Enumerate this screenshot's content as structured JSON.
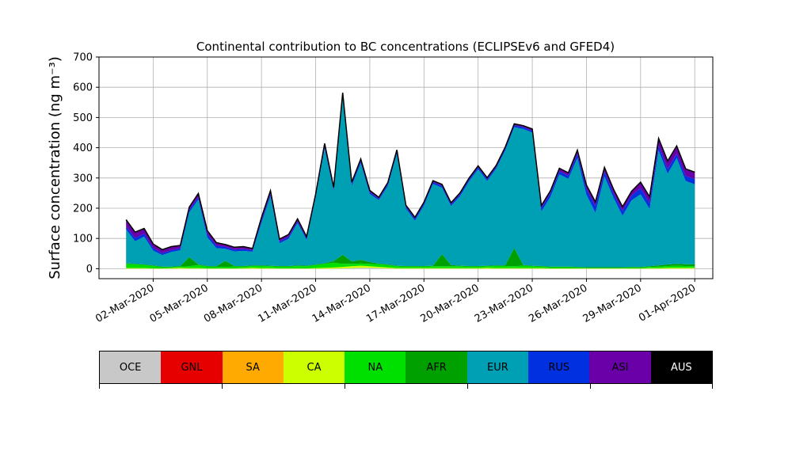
{
  "chart_data": {
    "type": "area",
    "title": "Continental contribution to BC concentrations (ECLIPSEv6 and GFED4)",
    "ylabel": "Surface concentration (ng m⁻³)",
    "xlabel": "",
    "ylim": [
      -33,
      700
    ],
    "yticks": [
      0,
      100,
      200,
      300,
      400,
      500,
      600,
      700
    ],
    "x_start": "2020-02-28T00:00",
    "x_end": "2020-04-02T00:00",
    "xticks": [
      {
        "date": "2020-03-02",
        "label": "02-Mar-2020"
      },
      {
        "date": "2020-03-05",
        "label": "05-Mar-2020"
      },
      {
        "date": "2020-03-08",
        "label": "08-Mar-2020"
      },
      {
        "date": "2020-03-11",
        "label": "11-Mar-2020"
      },
      {
        "date": "2020-03-14",
        "label": "14-Mar-2020"
      },
      {
        "date": "2020-03-17",
        "label": "17-Mar-2020"
      },
      {
        "date": "2020-03-20",
        "label": "20-Mar-2020"
      },
      {
        "date": "2020-03-23",
        "label": "23-Mar-2020"
      },
      {
        "date": "2020-03-26",
        "label": "26-Mar-2020"
      },
      {
        "date": "2020-03-29",
        "label": "29-Mar-2020"
      },
      {
        "date": "2020-04-01",
        "label": "01-Apr-2020"
      }
    ],
    "grid": true,
    "dates": [
      "2020-02-29T12:00",
      "2020-03-01T00:00",
      "2020-03-01T12:00",
      "2020-03-02T00:00",
      "2020-03-02T12:00",
      "2020-03-03T00:00",
      "2020-03-03T12:00",
      "2020-03-04T00:00",
      "2020-03-04T12:00",
      "2020-03-05T00:00",
      "2020-03-05T12:00",
      "2020-03-06T00:00",
      "2020-03-06T12:00",
      "2020-03-07T00:00",
      "2020-03-07T12:00",
      "2020-03-08T00:00",
      "2020-03-08T12:00",
      "2020-03-09T00:00",
      "2020-03-09T12:00",
      "2020-03-10T00:00",
      "2020-03-10T12:00",
      "2020-03-11T00:00",
      "2020-03-11T12:00",
      "2020-03-12T00:00",
      "2020-03-12T12:00",
      "2020-03-13T00:00",
      "2020-03-13T12:00",
      "2020-03-14T00:00",
      "2020-03-14T12:00",
      "2020-03-15T00:00",
      "2020-03-15T12:00",
      "2020-03-16T00:00",
      "2020-03-16T12:00",
      "2020-03-17T00:00",
      "2020-03-17T12:00",
      "2020-03-18T00:00",
      "2020-03-18T12:00",
      "2020-03-19T00:00",
      "2020-03-19T12:00",
      "2020-03-20T00:00",
      "2020-03-20T12:00",
      "2020-03-21T00:00",
      "2020-03-21T12:00",
      "2020-03-22T00:00",
      "2020-03-22T12:00",
      "2020-03-23T00:00",
      "2020-03-23T12:00",
      "2020-03-24T00:00",
      "2020-03-24T12:00",
      "2020-03-25T00:00",
      "2020-03-25T12:00",
      "2020-03-26T00:00",
      "2020-03-26T12:00",
      "2020-03-27T00:00",
      "2020-03-27T12:00",
      "2020-03-28T00:00",
      "2020-03-28T12:00",
      "2020-03-29T00:00",
      "2020-03-29T12:00",
      "2020-03-30T00:00",
      "2020-03-30T12:00",
      "2020-03-31T00:00",
      "2020-03-31T12:00",
      "2020-04-01T00:00"
    ],
    "series": [
      {
        "name": "OCE",
        "color": "#c8c8c8",
        "values": [
          0,
          0,
          0,
          0,
          0,
          0,
          0,
          0,
          0,
          0,
          0,
          0,
          0,
          0,
          0,
          0,
          0,
          0,
          0,
          0,
          0,
          0,
          0,
          0,
          1,
          2,
          3,
          3,
          2,
          1,
          0,
          0,
          0,
          0,
          0,
          0,
          0,
          0,
          0,
          0,
          0,
          0,
          0,
          0,
          0,
          0,
          0,
          0,
          0,
          0,
          0,
          0,
          0,
          0,
          0,
          0,
          0,
          0,
          0,
          0,
          0,
          0,
          0,
          0
        ]
      },
      {
        "name": "GNL",
        "color": "#e60000",
        "values": [
          0,
          0,
          0,
          0,
          0,
          0,
          0,
          0,
          0,
          0,
          0,
          0,
          0,
          0,
          0,
          0,
          0,
          0,
          0,
          0,
          0,
          0,
          0,
          0,
          0,
          0,
          0,
          0,
          0,
          0,
          0,
          0,
          0,
          0,
          0,
          0,
          0,
          0,
          0,
          0,
          0,
          0,
          0,
          0,
          0,
          0,
          0,
          0,
          0,
          0,
          0,
          0,
          0,
          0,
          0,
          0,
          0,
          0,
          0,
          0,
          0,
          0,
          0,
          0
        ]
      },
      {
        "name": "SA",
        "color": "#ffaa00",
        "values": [
          0,
          0,
          0,
          0,
          0,
          0,
          0,
          0,
          0,
          0,
          0,
          0,
          0,
          0,
          0,
          0,
          0,
          0,
          0,
          0,
          0,
          0,
          0,
          0,
          0,
          0,
          0,
          0,
          0,
          0,
          0,
          0,
          0,
          0,
          0,
          0,
          0,
          0,
          0,
          0,
          0,
          0,
          0,
          0,
          0,
          0,
          0,
          0,
          0,
          0,
          0,
          0,
          0,
          0,
          0,
          0,
          0,
          0,
          0,
          0,
          0,
          0,
          0,
          0
        ]
      },
      {
        "name": "CA",
        "color": "#ccff00",
        "values": [
          2,
          2,
          2,
          1,
          1,
          2,
          3,
          2,
          2,
          1,
          1,
          1,
          1,
          2,
          3,
          2,
          2,
          1,
          1,
          1,
          1,
          2,
          3,
          4,
          5,
          6,
          7,
          5,
          4,
          3,
          2,
          2,
          2,
          2,
          2,
          2,
          2,
          2,
          2,
          2,
          3,
          2,
          2,
          2,
          2,
          2,
          2,
          1,
          1,
          1,
          1,
          1,
          1,
          1,
          1,
          1,
          1,
          1,
          2,
          2,
          3,
          3,
          3,
          3
        ]
      },
      {
        "name": "NA",
        "color": "#00e000",
        "values": [
          14,
          12,
          10,
          8,
          4,
          3,
          4,
          6,
          10,
          6,
          5,
          5,
          6,
          5,
          6,
          7,
          6,
          6,
          6,
          8,
          7,
          10,
          13,
          16,
          10,
          8,
          7,
          8,
          9,
          8,
          6,
          5,
          5,
          5,
          6,
          6,
          6,
          6,
          5,
          5,
          5,
          7,
          7,
          6,
          8,
          6,
          5,
          4,
          4,
          4,
          3,
          2,
          2,
          2,
          2,
          2,
          3,
          3,
          4,
          5,
          6,
          7,
          6,
          5
        ]
      },
      {
        "name": "AFR",
        "color": "#00a000",
        "values": [
          2,
          2,
          2,
          2,
          2,
          2,
          2,
          30,
          2,
          2,
          2,
          20,
          2,
          2,
          2,
          2,
          2,
          2,
          2,
          2,
          2,
          2,
          2,
          5,
          30,
          8,
          12,
          6,
          2,
          2,
          2,
          2,
          2,
          2,
          2,
          40,
          4,
          2,
          2,
          2,
          2,
          2,
          2,
          60,
          2,
          2,
          2,
          2,
          2,
          2,
          2,
          2,
          2,
          2,
          2,
          2,
          2,
          2,
          2,
          4,
          5,
          6,
          6,
          6
        ]
      },
      {
        "name": "EUR",
        "color": "#00a0b4",
        "values": [
          112,
          75,
          92,
          49,
          38,
          48,
          52,
          148,
          215,
          95,
          60,
          40,
          48,
          50,
          45,
          140,
          230,
          75,
          90,
          140,
          85,
          220,
          380,
          230,
          520,
          250,
          320,
          225,
          210,
          260,
          370,
          190,
          150,
          200,
          270,
          220,
          195,
          230,
          280,
          320,
          280,
          320,
          380,
          400,
          450,
          440,
          180,
          230,
          305,
          290,
          360,
          240,
          180,
          300,
          230,
          170,
          220,
          240,
          190,
          380,
          300,
          350,
          275,
          265
        ]
      },
      {
        "name": "RUS",
        "color": "#0030e0",
        "values": [
          10,
          10,
          10,
          8,
          6,
          6,
          6,
          8,
          8,
          10,
          8,
          6,
          6,
          6,
          5,
          8,
          8,
          6,
          6,
          6,
          5,
          6,
          8,
          6,
          8,
          6,
          8,
          6,
          4,
          6,
          8,
          6,
          6,
          6,
          6,
          6,
          6,
          6,
          6,
          6,
          6,
          6,
          6,
          6,
          6,
          6,
          12,
          12,
          10,
          10,
          14,
          18,
          22,
          16,
          14,
          16,
          16,
          20,
          18,
          16,
          16,
          14,
          16,
          18
        ]
      },
      {
        "name": "ASI",
        "color": "#6a00a8",
        "values": [
          20,
          18,
          15,
          12,
          10,
          10,
          8,
          8,
          10,
          10,
          8,
          6,
          6,
          6,
          4,
          8,
          8,
          6,
          6,
          6,
          4,
          4,
          6,
          6,
          6,
          4,
          4,
          4,
          3,
          3,
          3,
          3,
          3,
          3,
          3,
          3,
          3,
          3,
          3,
          3,
          3,
          3,
          3,
          3,
          3,
          4,
          6,
          6,
          8,
          8,
          10,
          12,
          12,
          12,
          12,
          12,
          12,
          18,
          20,
          22,
          24,
          24,
          22,
          20
        ]
      },
      {
        "name": "AUS",
        "color": "#000000",
        "values": [
          2,
          2,
          2,
          2,
          2,
          2,
          2,
          2,
          2,
          2,
          2,
          2,
          2,
          2,
          2,
          2,
          2,
          2,
          2,
          2,
          2,
          2,
          2,
          2,
          2,
          2,
          2,
          2,
          2,
          2,
          2,
          2,
          2,
          2,
          2,
          2,
          2,
          2,
          2,
          2,
          2,
          2,
          2,
          2,
          2,
          2,
          2,
          2,
          2,
          2,
          2,
          2,
          2,
          2,
          2,
          2,
          2,
          2,
          2,
          2,
          2,
          2,
          2,
          2
        ]
      }
    ],
    "legend": "bottom colorbar"
  }
}
